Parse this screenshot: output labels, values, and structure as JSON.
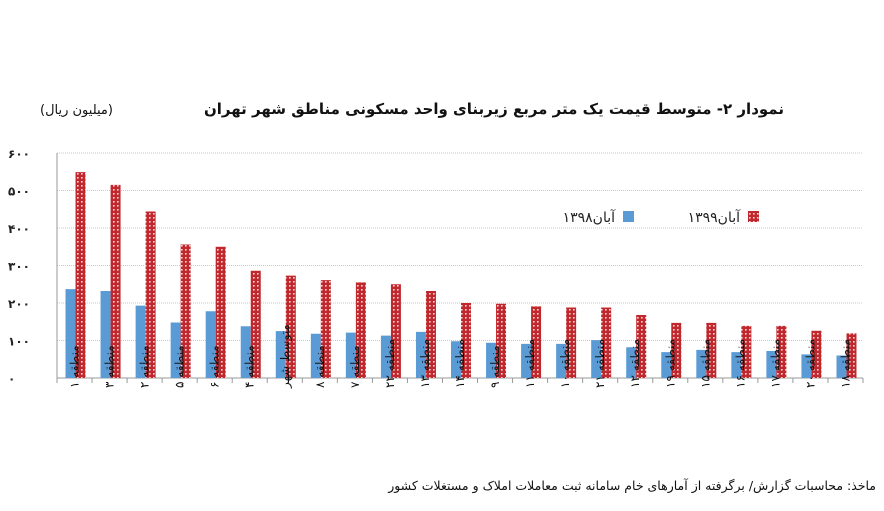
{
  "chart_data": {
    "type": "bar",
    "title": "نمودار ۲- متوسط قیمت یک متر مربع زیربنای واحد مسکونی مناطق شهر تهران",
    "ylabel": "(میلیون ریال)",
    "xlabel": "",
    "ylim": [
      0,
      600
    ],
    "yticks": [
      0,
      100,
      200,
      300,
      400,
      500,
      600
    ],
    "ytick_labels": [
      "۰",
      "۱۰۰",
      "۲۰۰",
      "۳۰۰",
      "۴۰۰",
      "۵۰۰",
      "۶۰۰"
    ],
    "grid": true,
    "legend_position": "top-right",
    "categories": [
      "منطقه ۱",
      "منطقه ۳",
      "منطقه ۲",
      "منطقه ۵",
      "منطقه ۶",
      "منطقه ۴",
      "متوسط شهر",
      "منطقه ۸",
      "منطقه ۷",
      "منطقه ۲۲",
      "منطقه ۱۳",
      "منطقه ۱۴",
      "منطقه ۹",
      "منطقه ۱۱",
      "منطقه ۱۰",
      "منطقه ۲۱",
      "منطقه ۱۲",
      "منطقه ۱۹",
      "منطقه ۱۵",
      "منطقه ۱۶",
      "منطقه ۱۷",
      "منطقه ۲۰",
      "منطقه ۱۸"
    ],
    "series": [
      {
        "name": "آبان۱۳۹۸",
        "color": "#5b9bd5",
        "values": [
          237,
          232,
          193,
          148,
          178,
          138,
          125,
          118,
          121,
          113,
          123,
          98,
          94,
          91,
          91,
          101,
          82,
          69,
          75,
          69,
          72,
          63,
          60
        ]
      },
      {
        "name": "آبان۱۳۹۹",
        "color": "#c0282d",
        "values": [
          549,
          515,
          444,
          356,
          350,
          286,
          273,
          261,
          255,
          250,
          232,
          200,
          198,
          191,
          188,
          188,
          168,
          147,
          147,
          139,
          139,
          126,
          119
        ]
      }
    ]
  },
  "source": "ماخذ: محاسبات گزارش/ برگرفته از آمارهای خام سامانه ثبت معاملات املاک و مستغلات کشور"
}
